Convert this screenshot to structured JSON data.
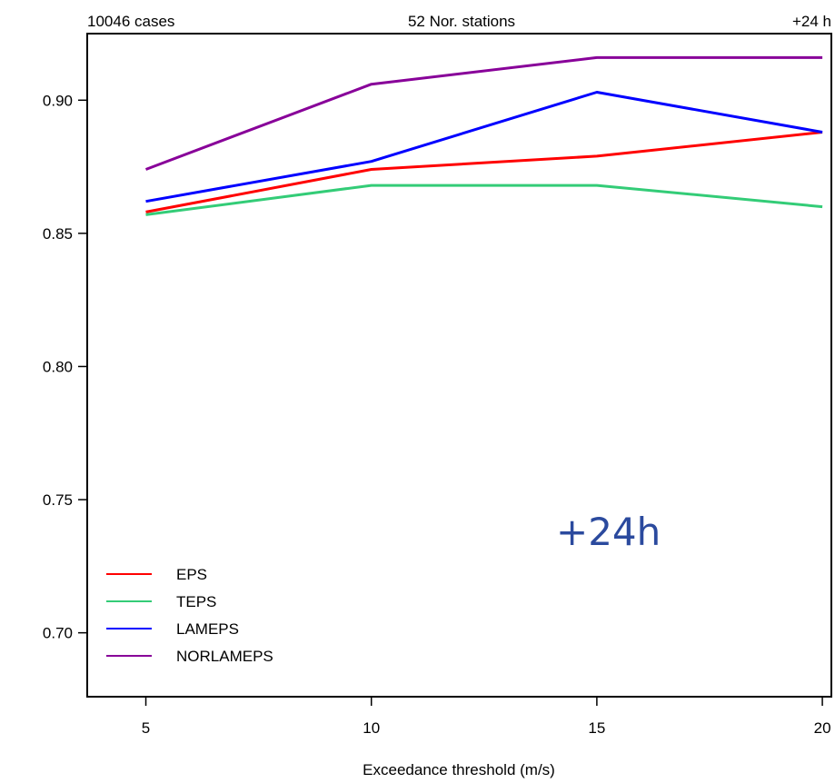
{
  "chart_data": {
    "type": "line",
    "header_left": "10046 cases",
    "header_center": "52 Nor. stations",
    "header_right": "+24 h",
    "annotation": "+24h",
    "xlabel": "Exceedance threshold (m/s)",
    "ylabel": "",
    "x": [
      5,
      10,
      15,
      20
    ],
    "x_tick_labels": [
      "5",
      "10",
      "15",
      "20"
    ],
    "xlim": [
      3.7,
      20.2
    ],
    "ylim": [
      0.676,
      0.925
    ],
    "y_ticks": [
      0.7,
      0.75,
      0.8,
      0.85,
      0.9
    ],
    "y_tick_labels": [
      "0.70",
      "0.75",
      "0.80",
      "0.85",
      "0.90"
    ],
    "legend_position": "bottom-left",
    "series": [
      {
        "name": "EPS",
        "color": "#ff0000",
        "values": [
          0.858,
          0.874,
          0.879,
          0.888
        ]
      },
      {
        "name": "TEPS",
        "color": "#33cc77",
        "values": [
          0.857,
          0.868,
          0.868,
          0.86
        ]
      },
      {
        "name": "LAMEPS",
        "color": "#0000ff",
        "values": [
          0.862,
          0.877,
          0.903,
          0.888
        ]
      },
      {
        "name": "NORLAMEPS",
        "color": "#880099",
        "values": [
          0.874,
          0.906,
          0.916,
          0.916
        ]
      }
    ]
  }
}
